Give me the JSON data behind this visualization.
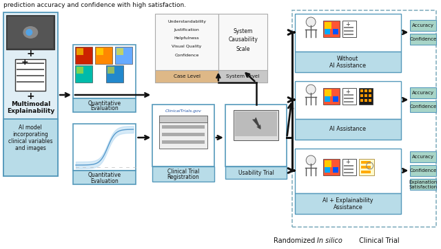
{
  "bg": "#ffffff",
  "lb_fill": "#B8DCE8",
  "teal_fill": "#A8D5C8",
  "white_fill": "#ffffff",
  "grey_fill": "#F2F2F2",
  "peach_fill": "#E8C898",
  "silver_fill": "#D0D0D0",
  "border_blue": "#5599BB",
  "border_dark": "#444444",
  "border_grey": "#AAAAAA",
  "dashed_color": "#7AAABB",
  "arrow_color": "#111111",
  "text_dark": "#111111",
  "text_blue": "#2255AA",
  "header": "prediction accuracy and confidence with high satisfaction.",
  "caption_normal": "Randomized ",
  "caption_italic": "In silico",
  "caption_suffix": " Clinical Trial"
}
